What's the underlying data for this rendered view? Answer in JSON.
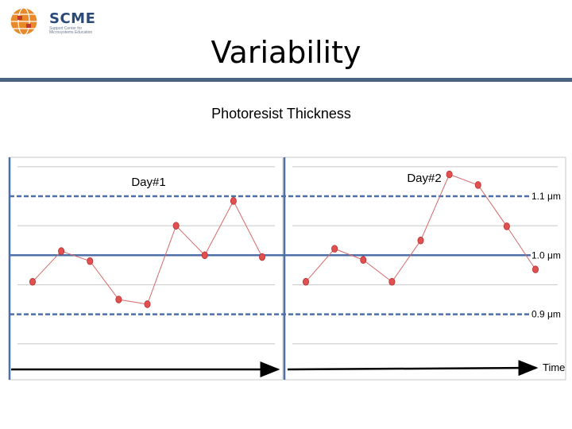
{
  "logo": {
    "name": "SCME",
    "tagline": "Support Center for Microsystems Education"
  },
  "slide": {
    "title": "Variability"
  },
  "colors": {
    "point": "#e05050",
    "point_edge": "#b83030",
    "trend_line": "#d46a6a",
    "ref_line": "#4f6fa8",
    "title_rule": "#4a6383"
  },
  "chart_data": {
    "type": "line",
    "title": "Photoresist Thickness",
    "xlabel": "Time",
    "ylabel": "",
    "ylim": [
      0.82,
      1.17
    ],
    "reference_lines": [
      {
        "value": 1.1,
        "label": "1.1 μm",
        "style": "dashed"
      },
      {
        "value": 1.0,
        "label": "1.0 μm",
        "style": "solid"
      },
      {
        "value": 0.9,
        "label": "0.9 μm",
        "style": "dashed"
      }
    ],
    "grid": true,
    "panels": [
      {
        "label": "Day#1",
        "values": [
          0.955,
          1.007,
          0.99,
          0.925,
          0.917,
          1.05,
          1.0,
          1.092,
          0.997
        ]
      },
      {
        "label": "Day#2",
        "values": [
          0.955,
          1.011,
          0.992,
          0.955,
          1.025,
          1.137,
          1.119,
          1.049,
          0.976
        ]
      }
    ]
  }
}
